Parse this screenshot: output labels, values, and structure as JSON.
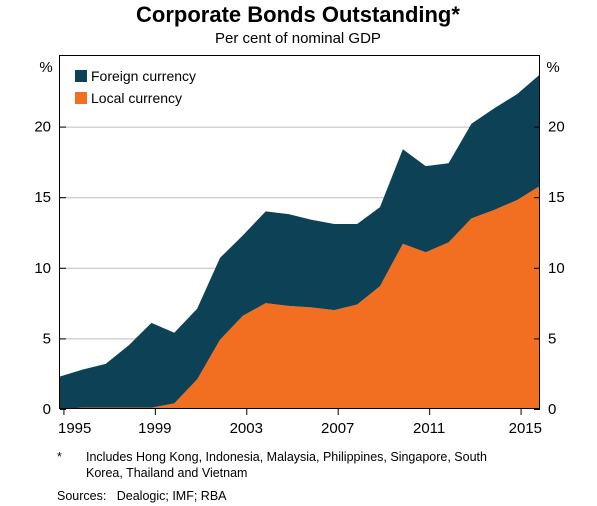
{
  "chart_data": {
    "type": "area",
    "title": "Corporate Bonds Outstanding*",
    "subtitle": "Per cent of nominal GDP",
    "ylabel_left": "%",
    "ylabel_right": "%",
    "ylim": [
      0,
      25
    ],
    "yticks": [
      0,
      5,
      10,
      15,
      20
    ],
    "xlim": [
      1994.85,
      2015.85
    ],
    "xticks": [
      1995,
      1999,
      2003,
      2007,
      2011,
      2015
    ],
    "x": [
      1994.85,
      1995.85,
      1996.85,
      1997.85,
      1998.85,
      1999.85,
      2000.85,
      2001.85,
      2002.85,
      2003.85,
      2004.85,
      2005.85,
      2006.85,
      2007.85,
      2008.85,
      2009.85,
      2010.85,
      2011.85,
      2012.85,
      2013.85,
      2014.85,
      2015.85
    ],
    "stacked": true,
    "grid": true,
    "legend_position": "top-left",
    "series": [
      {
        "name": "Local currency",
        "color": "#F26F21",
        "values": [
          0.0,
          0.1,
          0.1,
          0.1,
          0.1,
          0.4,
          2.1,
          4.9,
          6.6,
          7.5,
          7.3,
          7.2,
          7.0,
          7.4,
          8.7,
          11.7,
          11.1,
          11.8,
          13.5,
          14.1,
          14.8,
          15.8
        ]
      },
      {
        "name": "Foreign currency",
        "color": "#0D4156",
        "values": [
          2.3,
          2.7,
          3.1,
          4.4,
          6.0,
          5.0,
          5.0,
          5.8,
          5.7,
          6.5,
          6.5,
          6.2,
          6.1,
          5.7,
          5.6,
          6.7,
          6.1,
          5.6,
          6.7,
          7.2,
          7.5,
          7.9
        ]
      }
    ]
  },
  "footnote_marker": "*",
  "footnote": "Includes Hong Kong, Indonesia, Malaysia, Philippines, Singapore, South Korea, Thailand and Vietnam",
  "sources": "Sources:   Dealogic; IMF; RBA"
}
